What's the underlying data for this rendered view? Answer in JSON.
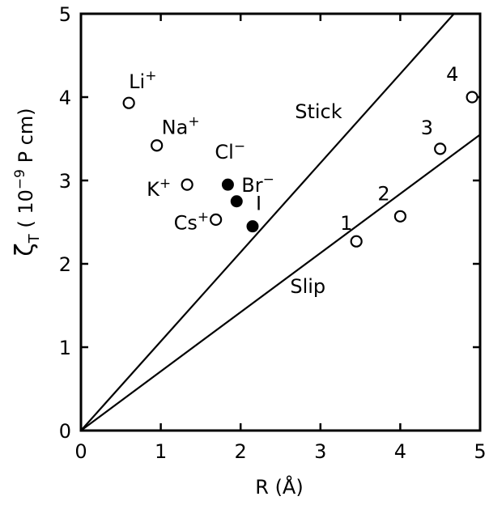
{
  "chart_data": {
    "type": "scatter",
    "title": "",
    "xlabel": "R (Å)",
    "ylabel_symbol": "ζ",
    "ylabel_sub": "T",
    "ylabel_unit": "( 10",
    "ylabel_exp": "−9",
    "ylabel_tail": " P cm)",
    "xlim": [
      0,
      5
    ],
    "ylim": [
      0,
      5
    ],
    "x_ticks": [
      "0",
      "1",
      "2",
      "3",
      "4",
      "5"
    ],
    "y_ticks": [
      "0",
      "1",
      "2",
      "3",
      "4",
      "5"
    ],
    "lines": [
      {
        "name": "Stick",
        "slope": 1.07
      },
      {
        "name": "Slip",
        "slope": 0.71
      }
    ],
    "cations": [
      {
        "label": "Li",
        "sup": "+",
        "x": 0.6,
        "y": 3.93
      },
      {
        "label": "Na",
        "sup": "+",
        "x": 0.95,
        "y": 3.42
      },
      {
        "label": "K",
        "sup": "+",
        "x": 1.33,
        "y": 2.95
      },
      {
        "label": "Cs",
        "sup": "+",
        "x": 1.69,
        "y": 2.53
      }
    ],
    "anions": [
      {
        "label": "Cl",
        "sup": "−",
        "x": 1.84,
        "y": 2.95
      },
      {
        "label": "Br",
        "sup": "−",
        "x": 1.95,
        "y": 2.75
      },
      {
        "label": "I",
        "sup": "",
        "x": 2.15,
        "y": 2.45
      }
    ],
    "numbered": [
      {
        "label": "1",
        "x": 3.45,
        "y": 2.27
      },
      {
        "label": "2",
        "x": 4.0,
        "y": 2.57
      },
      {
        "label": "3",
        "x": 4.5,
        "y": 3.38
      },
      {
        "label": "4",
        "x": 4.9,
        "y": 4.0
      }
    ]
  }
}
